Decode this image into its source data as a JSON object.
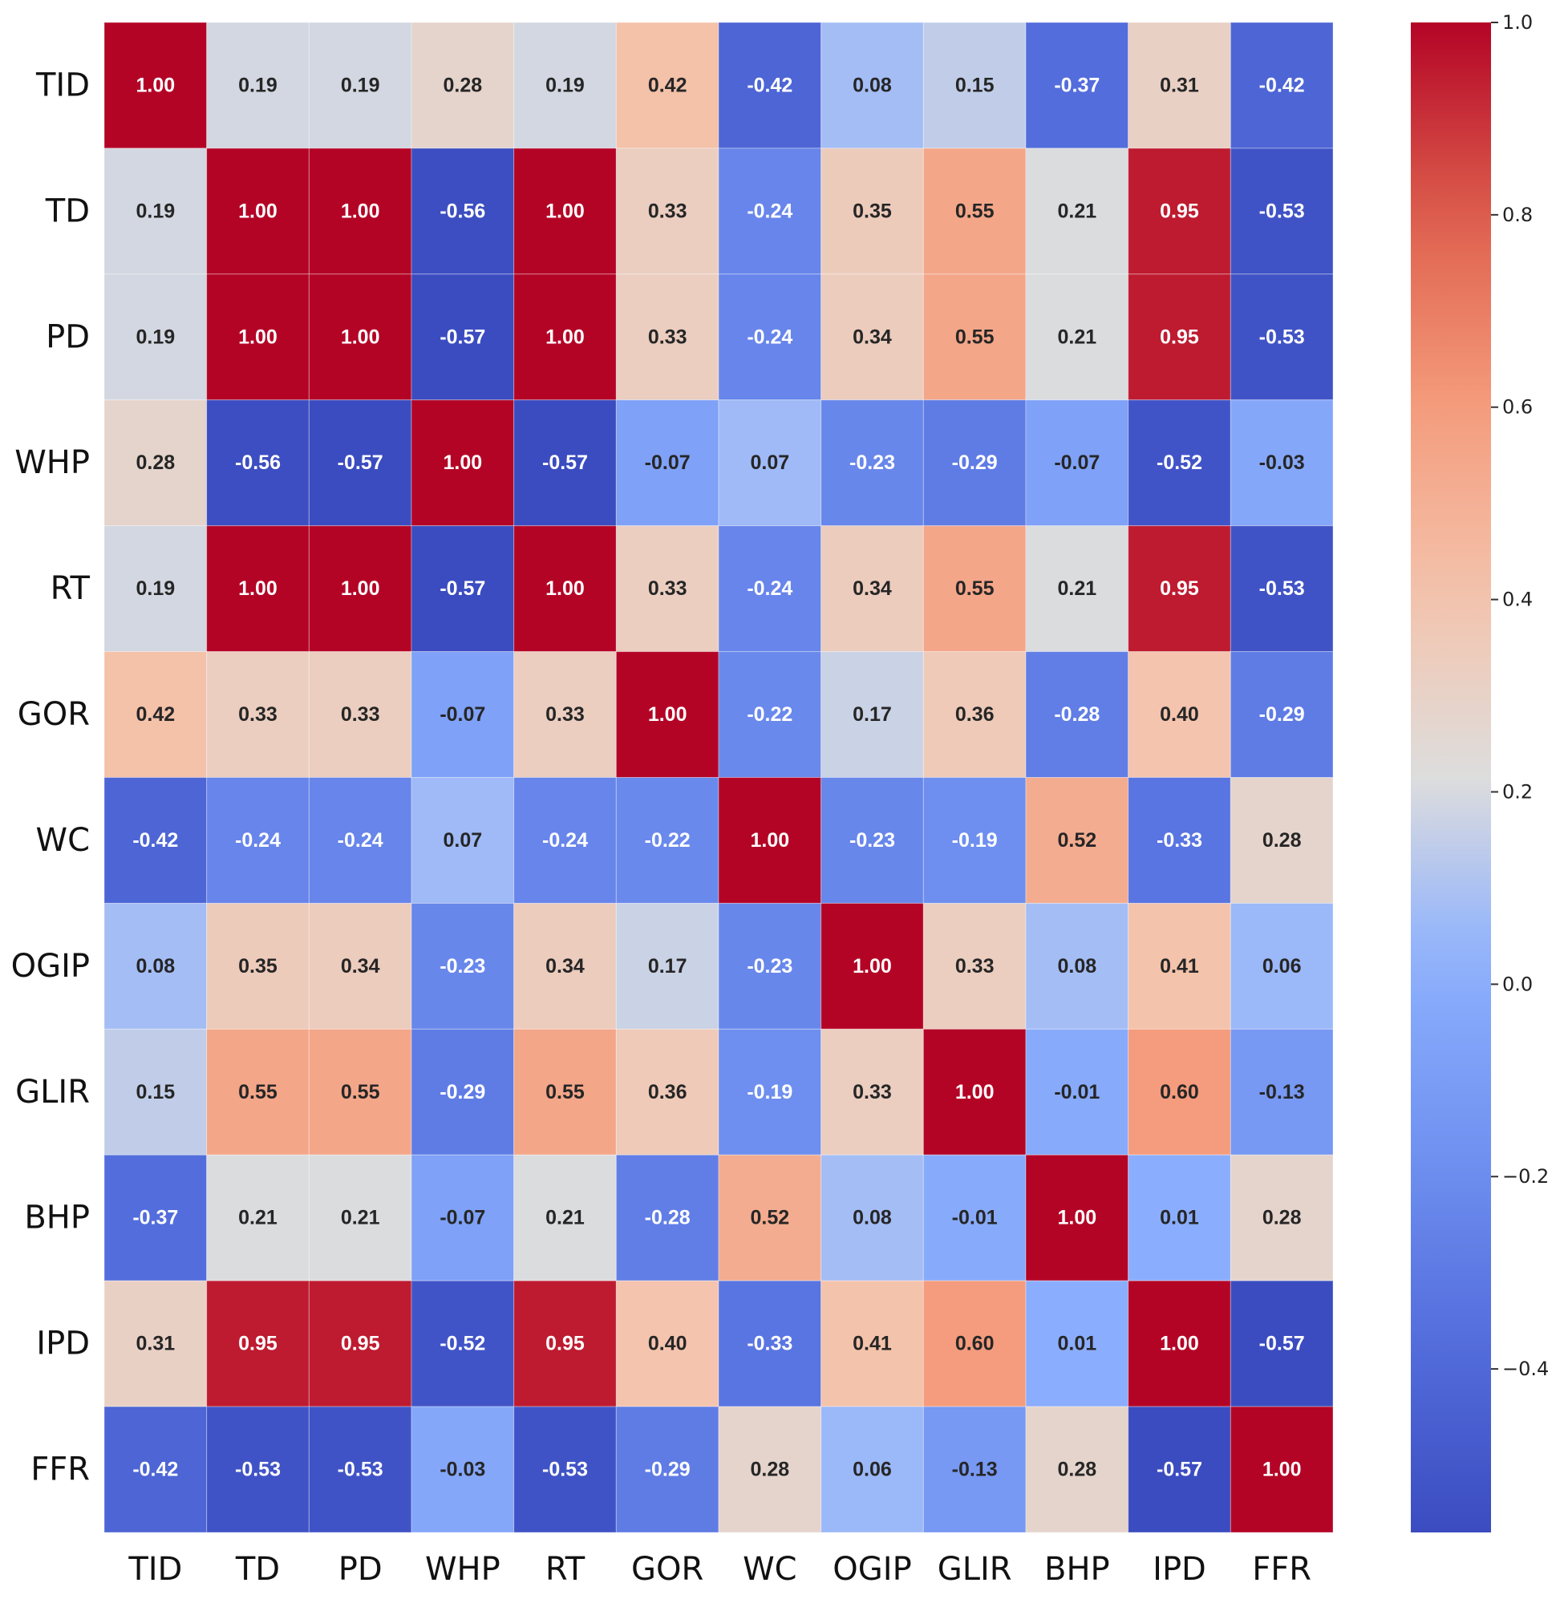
{
  "chart_data": {
    "type": "heatmap",
    "title": "",
    "xlabel": "",
    "ylabel": "",
    "colormap": "coolwarm",
    "vmin": -0.57,
    "vmax": 1.0,
    "value_format": "0.00",
    "row_labels": [
      "TID",
      "TD",
      "PD",
      "WHP",
      "RT",
      "GOR",
      "WC",
      "OGIP",
      "GLIR",
      "BHP",
      "IPD",
      "FFR"
    ],
    "col_labels": [
      "TID",
      "TD",
      "PD",
      "WHP",
      "RT",
      "GOR",
      "WC",
      "OGIP",
      "GLIR",
      "BHP",
      "IPD",
      "FFR"
    ],
    "values": [
      [
        1.0,
        0.19,
        0.19,
        0.28,
        0.19,
        0.42,
        -0.42,
        0.08,
        0.15,
        -0.37,
        0.31,
        -0.42
      ],
      [
        0.19,
        1.0,
        1.0,
        -0.56,
        1.0,
        0.33,
        -0.24,
        0.35,
        0.55,
        0.21,
        0.95,
        -0.53
      ],
      [
        0.19,
        1.0,
        1.0,
        -0.57,
        1.0,
        0.33,
        -0.24,
        0.34,
        0.55,
        0.21,
        0.95,
        -0.53
      ],
      [
        0.28,
        -0.56,
        -0.57,
        1.0,
        -0.57,
        -0.07,
        0.07,
        -0.23,
        -0.29,
        -0.07,
        -0.52,
        -0.03
      ],
      [
        0.19,
        1.0,
        1.0,
        -0.57,
        1.0,
        0.33,
        -0.24,
        0.34,
        0.55,
        0.21,
        0.95,
        -0.53
      ],
      [
        0.42,
        0.33,
        0.33,
        -0.07,
        0.33,
        1.0,
        -0.22,
        0.17,
        0.36,
        -0.28,
        0.4,
        -0.29
      ],
      [
        -0.42,
        -0.24,
        -0.24,
        0.07,
        -0.24,
        -0.22,
        1.0,
        -0.23,
        -0.19,
        0.52,
        -0.33,
        0.28
      ],
      [
        0.08,
        0.35,
        0.34,
        -0.23,
        0.34,
        0.17,
        -0.23,
        1.0,
        0.33,
        0.08,
        0.41,
        0.06
      ],
      [
        0.15,
        0.55,
        0.55,
        -0.29,
        0.55,
        0.36,
        -0.19,
        0.33,
        1.0,
        -0.01,
        0.6,
        -0.13
      ],
      [
        -0.37,
        0.21,
        0.21,
        -0.07,
        0.21,
        -0.28,
        0.52,
        0.08,
        -0.01,
        1.0,
        0.01,
        0.28
      ],
      [
        0.31,
        0.95,
        0.95,
        -0.52,
        0.95,
        0.4,
        -0.33,
        0.41,
        0.6,
        0.01,
        1.0,
        -0.57
      ],
      [
        -0.42,
        -0.53,
        -0.53,
        -0.03,
        -0.53,
        -0.29,
        0.28,
        0.06,
        -0.13,
        0.28,
        -0.57,
        1.0
      ]
    ],
    "colorbar": {
      "ticks": [
        1.0,
        0.8,
        0.6,
        0.4,
        0.2,
        0.0,
        -0.2,
        -0.4
      ],
      "tick_labels": [
        "1.0",
        "0.8",
        "0.6",
        "0.4",
        "0.2",
        "0.0",
        "−0.2",
        "−0.4"
      ]
    }
  }
}
